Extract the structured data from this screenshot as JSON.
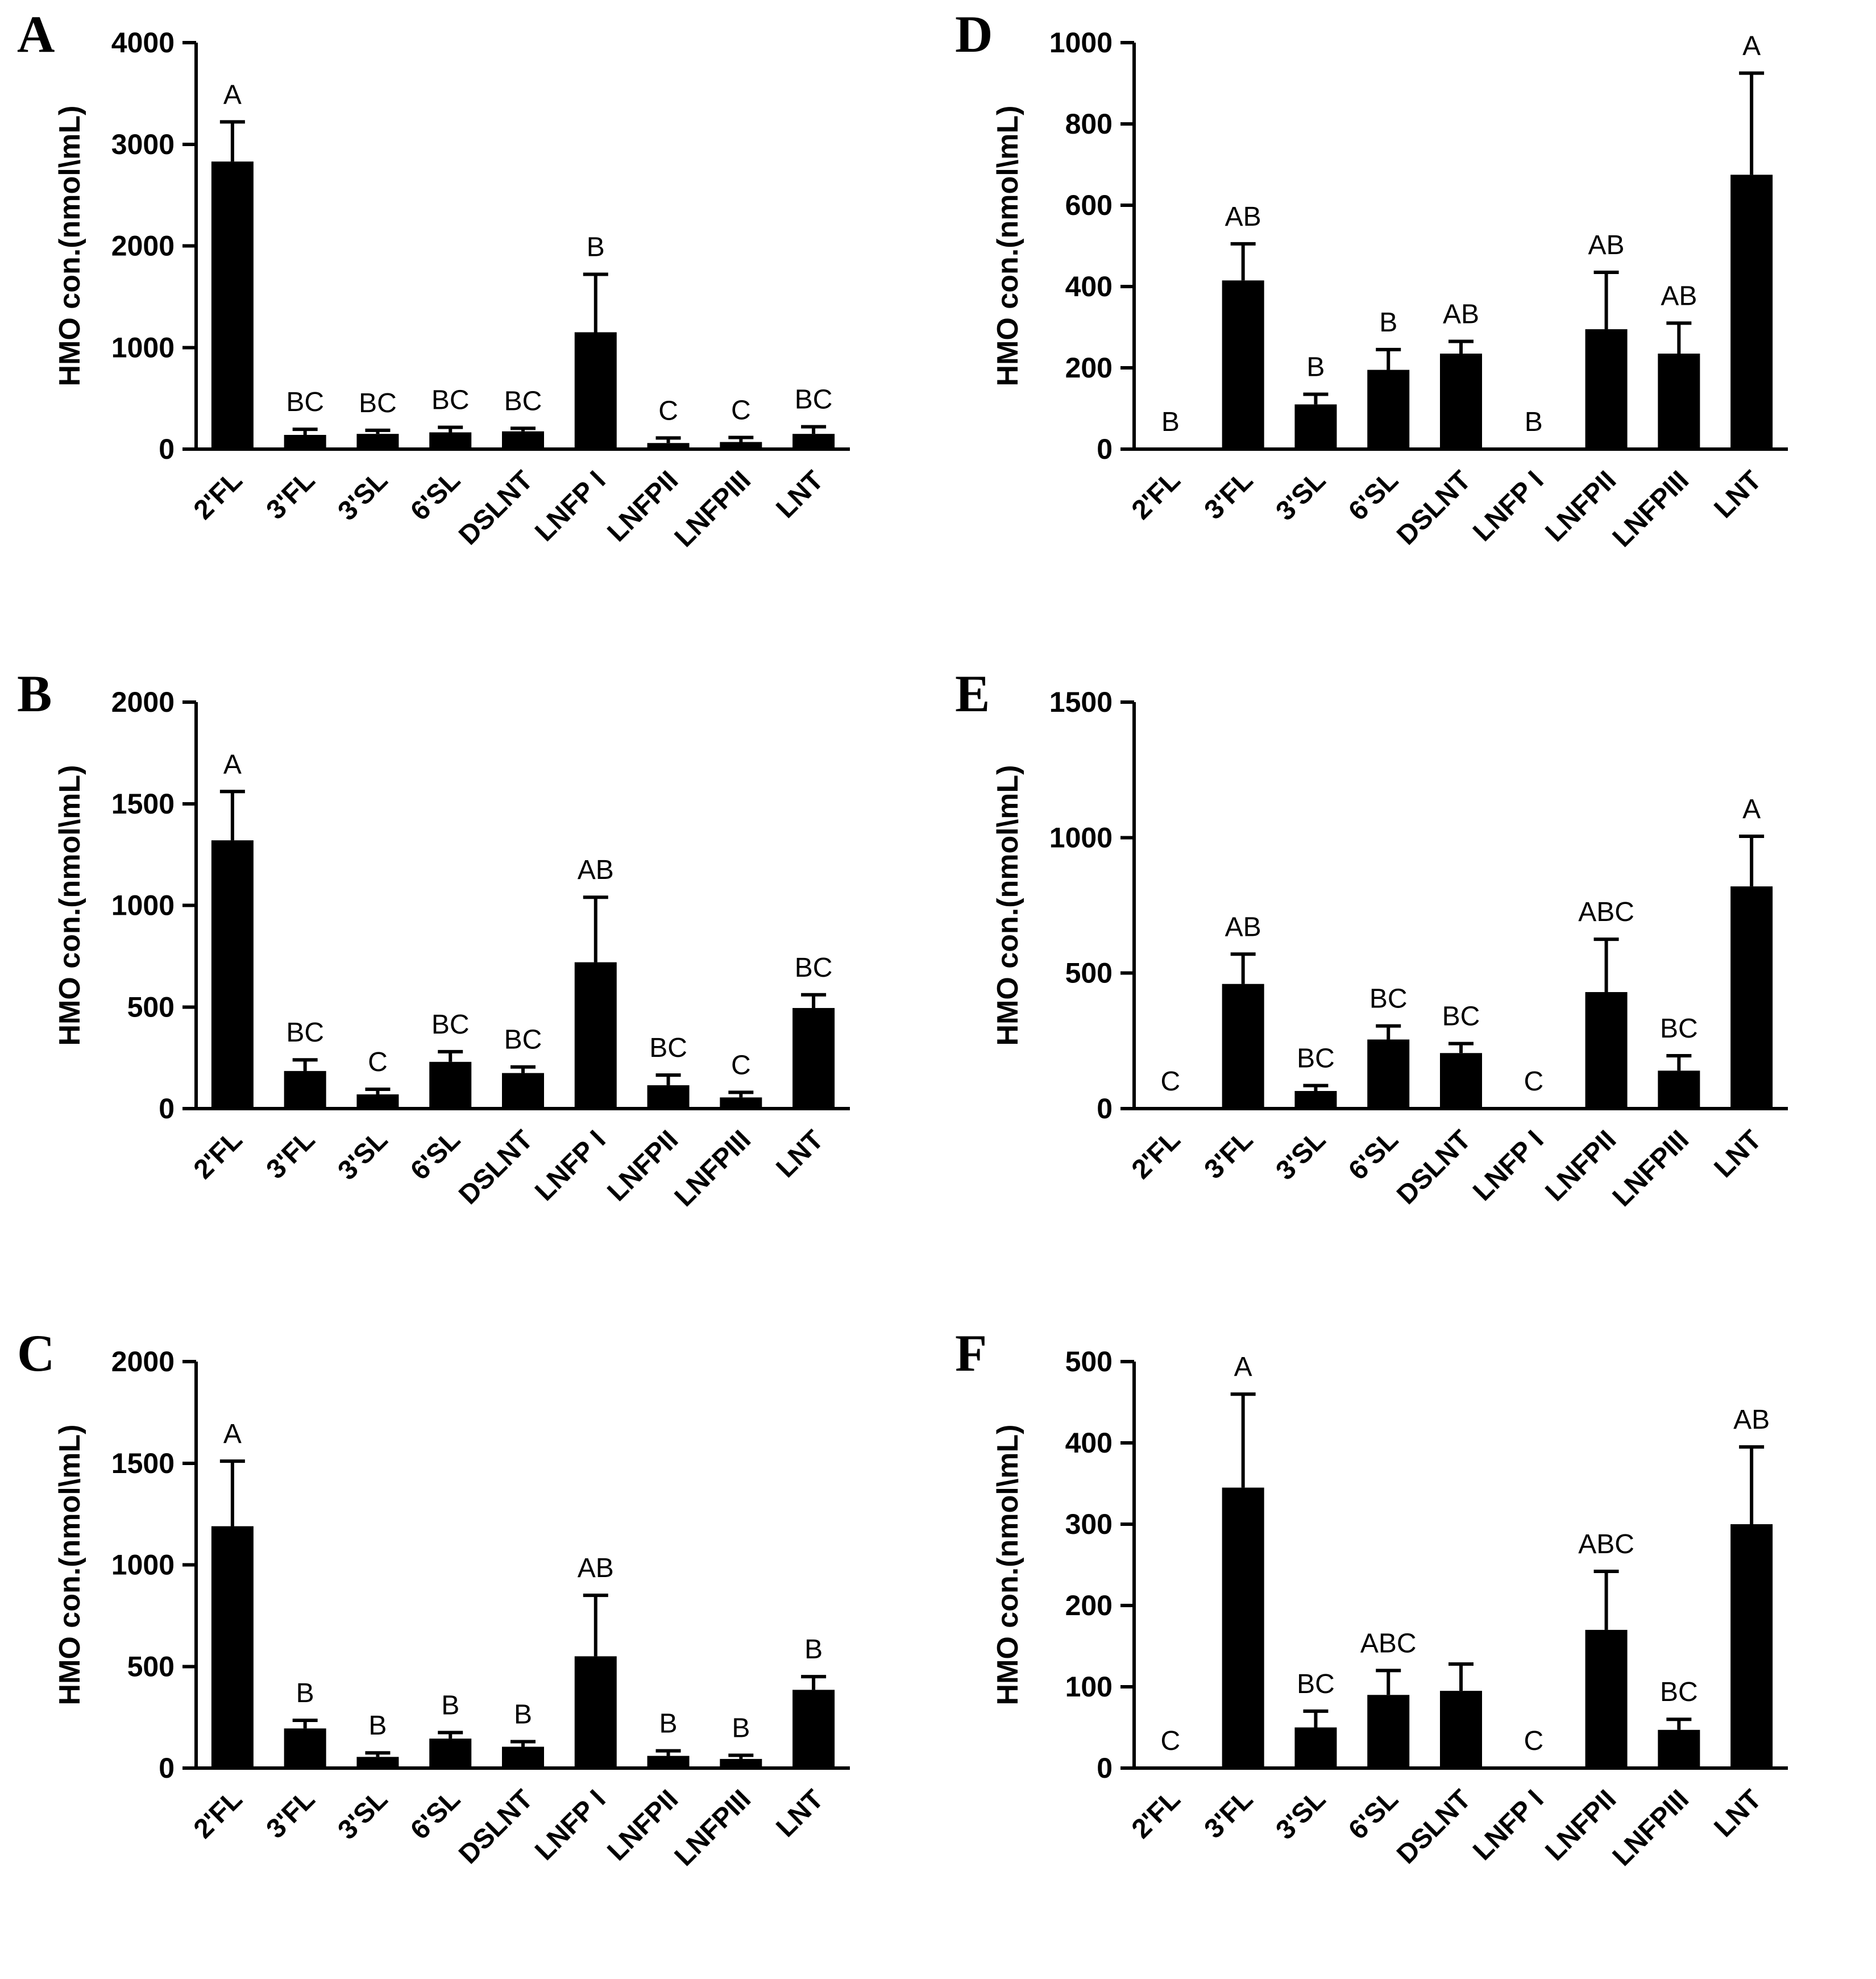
{
  "figure_title": "",
  "chart_data": [
    {
      "type": "bar",
      "panel": "A",
      "ylabel": "HMO con.(nmol\\mL)",
      "categories": [
        "2'FL",
        "3'FL",
        "3'SL",
        "6'SL",
        "DSLNT",
        "LNFP I",
        "LNFPII",
        "LNFPIII",
        "LNT"
      ],
      "values": [
        2830,
        140,
        150,
        165,
        175,
        1150,
        60,
        70,
        150
      ],
      "errors_upper": [
        390,
        55,
        35,
        50,
        30,
        570,
        50,
        45,
        70
      ],
      "sig_letters": [
        "A",
        "BC",
        "BC",
        "BC",
        "BC",
        "B",
        "C",
        "C",
        "BC"
      ],
      "ylim": [
        0,
        4000
      ],
      "yticks": [
        0,
        1000,
        2000,
        3000,
        4000
      ],
      "bar_color": "#000000",
      "grid": false,
      "legend": "none"
    },
    {
      "type": "bar",
      "panel": "B",
      "ylabel": "HMO con.(nmol\\mL)",
      "categories": [
        "2'FL",
        "3'FL",
        "3'SL",
        "6'SL",
        "DSLNT",
        "LNFP I",
        "LNFPII",
        "LNFPIII",
        "LNT"
      ],
      "values": [
        1320,
        185,
        70,
        230,
        175,
        720,
        115,
        55,
        495
      ],
      "errors_upper": [
        240,
        55,
        25,
        50,
        30,
        320,
        50,
        25,
        65
      ],
      "sig_letters": [
        "A",
        "BC",
        "C",
        "BC",
        "BC",
        "AB",
        "BC",
        "C",
        "BC"
      ],
      "ylim": [
        0,
        2000
      ],
      "yticks": [
        0,
        500,
        1000,
        1500,
        2000
      ],
      "bar_color": "#000000",
      "grid": false,
      "legend": "none"
    },
    {
      "type": "bar",
      "panel": "C",
      "ylabel": "HMO con.(nmol\\mL)",
      "categories": [
        "2'FL",
        "3'FL",
        "3'SL",
        "6'SL",
        "DSLNT",
        "LNFP I",
        "LNFPII",
        "LNFPIII",
        "LNT"
      ],
      "values": [
        1190,
        195,
        55,
        145,
        105,
        550,
        60,
        45,
        385
      ],
      "errors_upper": [
        320,
        40,
        20,
        30,
        25,
        300,
        25,
        18,
        65
      ],
      "sig_letters": [
        "A",
        "B",
        "B",
        "B",
        "B",
        "AB",
        "B",
        "B",
        "B"
      ],
      "ylim": [
        0,
        2000
      ],
      "yticks": [
        0,
        500,
        1000,
        1500,
        2000
      ],
      "bar_color": "#000000",
      "grid": false,
      "legend": "none"
    },
    {
      "type": "bar",
      "panel": "D",
      "ylabel": "HMO con.(nmol\\mL)",
      "categories": [
        "2'FL",
        "3'FL",
        "3'SL",
        "6'SL",
        "DSLNT",
        "LNFP I",
        "LNFPII",
        "LNFPIII",
        "LNT"
      ],
      "values": [
        0,
        415,
        110,
        195,
        235,
        0,
        295,
        235,
        675
      ],
      "errors_upper": [
        0,
        90,
        25,
        50,
        30,
        0,
        140,
        75,
        250
      ],
      "sig_letters": [
        "B",
        "AB",
        "B",
        "B",
        "AB",
        "B",
        "AB",
        "AB",
        "A"
      ],
      "ylim": [
        0,
        1000
      ],
      "yticks": [
        0,
        200,
        400,
        600,
        800,
        1000
      ],
      "bar_color": "#000000",
      "grid": false,
      "legend": "none"
    },
    {
      "type": "bar",
      "panel": "E",
      "ylabel": "HMO con.(nmol\\mL)",
      "categories": [
        "2'FL",
        "3'FL",
        "3'SL",
        "6'SL",
        "DSLNT",
        "LNFP I",
        "LNFPII",
        "LNFPIII",
        "LNT"
      ],
      "values": [
        0,
        460,
        65,
        255,
        205,
        0,
        430,
        140,
        820
      ],
      "errors_upper": [
        0,
        110,
        20,
        50,
        35,
        0,
        195,
        55,
        185
      ],
      "sig_letters": [
        "C",
        "AB",
        "BC",
        "BC",
        "BC",
        "C",
        "ABC",
        "BC",
        "A"
      ],
      "ylim": [
        0,
        1500
      ],
      "yticks": [
        0,
        500,
        1000,
        1500
      ],
      "bar_color": "#000000",
      "grid": false,
      "legend": "none"
    },
    {
      "type": "bar",
      "panel": "F",
      "ylabel": "HMO con.(nmol\\mL)",
      "categories": [
        "2'FL",
        "3'FL",
        "3'SL",
        "6'SL",
        "DSLNT",
        "LNFP I",
        "LNFPII",
        "LNFPIII",
        "LNT"
      ],
      "values": [
        0,
        345,
        50,
        90,
        95,
        0,
        170,
        47,
        300
      ],
      "errors_upper": [
        0,
        115,
        20,
        30,
        33,
        0,
        72,
        13,
        95
      ],
      "sig_letters": [
        "C",
        "A",
        "BC",
        "ABC",
        "",
        "C",
        "ABC",
        "BC",
        "AB"
      ],
      "ylim": [
        0,
        500
      ],
      "yticks": [
        0,
        100,
        200,
        300,
        400,
        500
      ],
      "bar_color": "#000000",
      "grid": false,
      "legend": "none"
    }
  ]
}
